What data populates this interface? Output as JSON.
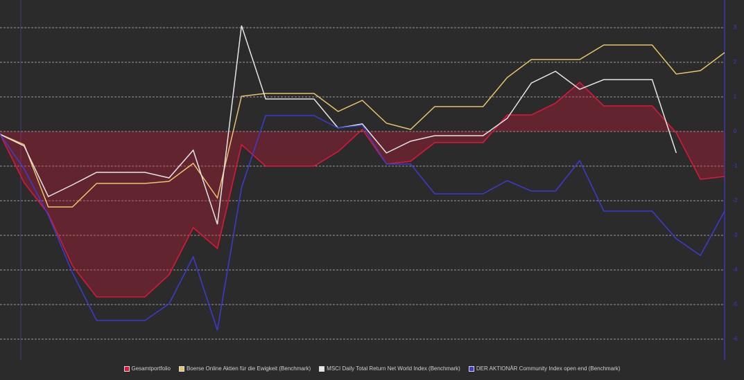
{
  "chart_data": {
    "type": "line",
    "categories": [
      null,
      null,
      null,
      null,
      null,
      null,
      null,
      null,
      null,
      null,
      null,
      null,
      null,
      null,
      null,
      null,
      null,
      null,
      null,
      null,
      null,
      null,
      null,
      null,
      null,
      null,
      null,
      null,
      null,
      null,
      null
    ],
    "series": [
      {
        "name": "Gesamtportfolio",
        "color": "#e0173a",
        "fill": true,
        "values": [
          -0.08,
          -1.48,
          -2.38,
          -3.88,
          -4.78,
          -4.78,
          -4.78,
          -4.14,
          -2.78,
          -3.38,
          -0.38,
          -1.0,
          -1.0,
          -1.0,
          -0.58,
          0.06,
          -0.94,
          -0.86,
          -0.32,
          -0.32,
          -0.32,
          0.48,
          0.48,
          0.82,
          1.42,
          0.74,
          0.74,
          0.74,
          -0.04,
          -1.38,
          -1.3
        ]
      },
      {
        "name": "Boerse Online Aktien für die Ewigkeit  (Benchmark)",
        "color": "#e8c56a",
        "values": [
          -0.08,
          -0.38,
          -2.18,
          -2.18,
          -1.5,
          -1.5,
          -1.5,
          -1.44,
          -0.92,
          -1.92,
          1.02,
          1.1,
          1.1,
          1.1,
          0.58,
          0.9,
          0.24,
          0.06,
          0.72,
          0.72,
          0.72,
          1.56,
          2.08,
          2.08,
          2.08,
          2.5,
          2.5,
          2.5,
          1.66,
          1.76,
          2.28
        ]
      },
      {
        "name": "MSCI Daily Total Return Net World Index (Benchmark)",
        "color": "#e6e6e6",
        "values": [
          -0.08,
          -0.42,
          -1.88,
          -1.54,
          -1.18,
          -1.18,
          -1.18,
          -1.34,
          -0.54,
          -2.68,
          3.06,
          0.94,
          0.94,
          0.94,
          0.1,
          0.22,
          -0.62,
          -0.28,
          -0.12,
          -0.12,
          -0.12,
          0.38,
          1.4,
          1.74,
          1.22,
          1.5,
          1.5,
          1.5,
          -0.62,
          null,
          null
        ]
      },
      {
        "name": "DER AKTIONÄR Community Index open end (Benchmark)",
        "color": "#3b3bd6",
        "values": [
          -0.08,
          -1.08,
          -2.42,
          -4.08,
          -5.46,
          -5.46,
          -5.46,
          -4.98,
          -3.62,
          -5.74,
          -1.62,
          0.46,
          0.46,
          0.46,
          0.1,
          0.18,
          -0.94,
          -0.94,
          -1.8,
          -1.8,
          -1.8,
          -1.42,
          -1.72,
          -1.72,
          -0.84,
          -2.3,
          -2.3,
          -2.3,
          -3.1,
          -3.58,
          -2.3
        ]
      }
    ],
    "ylim": [
      -6.5,
      3.8
    ],
    "yticks": [
      -6,
      -5,
      -4,
      -3,
      -2,
      -1,
      0,
      1,
      2,
      3
    ],
    "grid": true,
    "legend": "bottom"
  }
}
